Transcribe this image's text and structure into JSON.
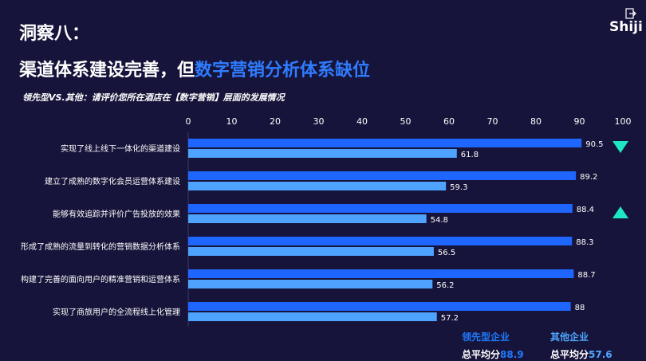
{
  "header": {
    "title_line1": "洞察八：",
    "title_line2_plain": "渠道体系建设完善，但",
    "title_line2_highlight": "数字营销分析体系缺位",
    "question": "领先型VS.其他：请评价您所在酒店在【数字营销】层面的发展情况",
    "logo": "Shiji"
  },
  "legend": {
    "leader_label": "领先型企业",
    "other_label": "其他企业",
    "leader_avg_label": "总平均分",
    "leader_avg_value": "88.9",
    "other_avg_label": "总平均分",
    "other_avg_value": "57.6"
  },
  "colors": {
    "leader": "#1f66ff",
    "other": "#4ea3ff",
    "background": "#16143a",
    "triangle": "#1de8c3"
  },
  "icons": [
    "exit-icon",
    "triangle-down-icon",
    "triangle-up-icon"
  ],
  "chart_data": {
    "type": "bar",
    "orientation": "horizontal",
    "categories": [
      "实现了线上线下一体化的渠道建设",
      "建立了成熟的数字化会员运营体系建设",
      "能够有效追踪并评价广告投放的效果",
      "形成了成熟的流量到转化的营销数据分析体系",
      "构建了完善的面向用户的精准营销和运营体系",
      "实现了商旅用户的全流程线上化管理"
    ],
    "series": [
      {
        "name": "领先型企业",
        "values": [
          90.5,
          89.2,
          88.4,
          88.3,
          88.7,
          88
        ]
      },
      {
        "name": "其他企业",
        "values": [
          61.8,
          59.3,
          54.8,
          56.5,
          56.2,
          57.2
        ]
      }
    ],
    "value_labels": [
      [
        "90.5",
        "89.2",
        "88.4",
        "88.3",
        "88.7",
        "88"
      ],
      [
        "61.8",
        "59.3",
        "54.8",
        "56.5",
        "56.2",
        "57.2"
      ]
    ],
    "xlim": [
      0,
      100
    ],
    "xticks": [
      "0",
      "10",
      "20",
      "30",
      "40",
      "50",
      "60",
      "70",
      "80",
      "90",
      "100"
    ],
    "markers": [
      {
        "category_index": 0,
        "shape": "down"
      },
      {
        "category_index": 2,
        "shape": "up"
      }
    ],
    "grid": false,
    "legend_position": "bottom-right"
  }
}
